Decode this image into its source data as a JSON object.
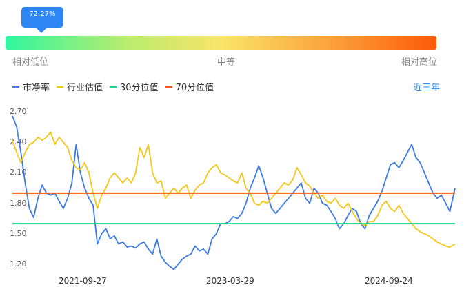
{
  "indicator": {
    "percentile_label": "72.27%",
    "percentile": 72.27,
    "low_label": "相对低位",
    "mid_label": "中等",
    "high_label": "相对高位",
    "gradient_colors": [
      "#2ff7a1",
      "#f9e56a",
      "#fc5a08"
    ]
  },
  "legend": {
    "items": [
      {
        "label": "市净率",
        "color": "#3b7be8"
      },
      {
        "label": "行业估值",
        "color": "#f5c518"
      },
      {
        "label": "30分位值",
        "color": "#19d48a"
      },
      {
        "label": "70分位值",
        "color": "#fc5a08"
      }
    ],
    "period": "近三年"
  },
  "chart_data": {
    "type": "line",
    "y_ticks": [
      "2.70",
      "2.40",
      "2.10",
      "1.80",
      "1.50",
      "1.20"
    ],
    "ylim": [
      1.2,
      2.7
    ],
    "x_ticks": [
      "2021-09-27",
      "2023-03-29",
      "2024-09-24"
    ],
    "x_range": [
      "2021-04-13",
      "2025-04-11"
    ],
    "series": [
      {
        "name": "市净率",
        "color": "#3b7be8",
        "points": [
          [
            "2021-04-13",
            2.66
          ],
          [
            "2021-04-27",
            2.55
          ],
          [
            "2021-05-11",
            2.3
          ],
          [
            "2021-05-25",
            2.0
          ],
          [
            "2021-06-08",
            1.75
          ],
          [
            "2021-06-22",
            1.66
          ],
          [
            "2021-07-06",
            1.85
          ],
          [
            "2021-07-20",
            1.98
          ],
          [
            "2021-08-03",
            1.9
          ],
          [
            "2021-08-17",
            1.88
          ],
          [
            "2021-08-31",
            1.9
          ],
          [
            "2021-09-14",
            1.82
          ],
          [
            "2021-09-28",
            1.75
          ],
          [
            "2021-10-12",
            1.85
          ],
          [
            "2021-10-26",
            2.0
          ],
          [
            "2021-11-09",
            2.38
          ],
          [
            "2021-11-23",
            2.1
          ],
          [
            "2021-12-07",
            1.95
          ],
          [
            "2021-12-21",
            1.85
          ],
          [
            "2022-01-04",
            1.78
          ],
          [
            "2022-01-18",
            1.4
          ],
          [
            "2022-02-01",
            1.5
          ],
          [
            "2022-02-15",
            1.55
          ],
          [
            "2022-03-01",
            1.45
          ],
          [
            "2022-03-15",
            1.48
          ],
          [
            "2022-03-29",
            1.4
          ],
          [
            "2022-04-12",
            1.42
          ],
          [
            "2022-04-26",
            1.37
          ],
          [
            "2022-05-10",
            1.38
          ],
          [
            "2022-05-24",
            1.36
          ],
          [
            "2022-06-07",
            1.4
          ],
          [
            "2022-06-21",
            1.42
          ],
          [
            "2022-07-05",
            1.35
          ],
          [
            "2022-07-19",
            1.3
          ],
          [
            "2022-08-02",
            1.45
          ],
          [
            "2022-08-16",
            1.28
          ],
          [
            "2022-08-30",
            1.22
          ],
          [
            "2022-09-13",
            1.18
          ],
          [
            "2022-09-27",
            1.15
          ],
          [
            "2022-10-11",
            1.2
          ],
          [
            "2022-10-25",
            1.25
          ],
          [
            "2022-11-08",
            1.28
          ],
          [
            "2022-11-22",
            1.3
          ],
          [
            "2022-12-06",
            1.38
          ],
          [
            "2022-12-20",
            1.33
          ],
          [
            "2023-01-03",
            1.35
          ],
          [
            "2023-01-17",
            1.3
          ],
          [
            "2023-01-31",
            1.45
          ],
          [
            "2023-02-14",
            1.5
          ],
          [
            "2023-02-28",
            1.6
          ],
          [
            "2023-03-14",
            1.6
          ],
          [
            "2023-03-28",
            1.62
          ],
          [
            "2023-04-11",
            1.67
          ],
          [
            "2023-04-25",
            1.65
          ],
          [
            "2023-05-09",
            1.7
          ],
          [
            "2023-05-23",
            1.8
          ],
          [
            "2023-06-06",
            1.95
          ],
          [
            "2023-06-20",
            2.05
          ],
          [
            "2023-07-04",
            2.17
          ],
          [
            "2023-07-18",
            2.05
          ],
          [
            "2023-08-01",
            1.9
          ],
          [
            "2023-08-15",
            1.75
          ],
          [
            "2023-08-29",
            1.7
          ],
          [
            "2023-09-12",
            1.75
          ],
          [
            "2023-09-26",
            1.8
          ],
          [
            "2023-10-10",
            1.85
          ],
          [
            "2023-10-24",
            1.9
          ],
          [
            "2023-11-07",
            1.95
          ],
          [
            "2023-11-21",
            2.0
          ],
          [
            "2023-12-05",
            1.85
          ],
          [
            "2023-12-19",
            1.8
          ],
          [
            "2024-01-02",
            1.95
          ],
          [
            "2024-01-16",
            1.9
          ],
          [
            "2024-01-30",
            1.8
          ],
          [
            "2024-02-13",
            1.78
          ],
          [
            "2024-02-27",
            1.72
          ],
          [
            "2024-03-12",
            1.65
          ],
          [
            "2024-03-26",
            1.55
          ],
          [
            "2024-04-09",
            1.6
          ],
          [
            "2024-04-23",
            1.68
          ],
          [
            "2024-05-07",
            1.75
          ],
          [
            "2024-05-21",
            1.72
          ],
          [
            "2024-06-04",
            1.6
          ],
          [
            "2024-06-18",
            1.55
          ],
          [
            "2024-07-02",
            1.68
          ],
          [
            "2024-07-16",
            1.75
          ],
          [
            "2024-07-30",
            1.82
          ],
          [
            "2024-08-13",
            1.92
          ],
          [
            "2024-08-27",
            2.05
          ],
          [
            "2024-09-10",
            2.18
          ],
          [
            "2024-09-24",
            2.2
          ],
          [
            "2024-10-08",
            2.15
          ],
          [
            "2024-10-22",
            2.22
          ],
          [
            "2024-11-05",
            2.3
          ],
          [
            "2024-11-19",
            2.38
          ],
          [
            "2024-12-03",
            2.25
          ],
          [
            "2024-12-17",
            2.2
          ],
          [
            "2024-12-31",
            2.1
          ],
          [
            "2025-01-14",
            2.0
          ],
          [
            "2025-01-28",
            1.9
          ],
          [
            "2025-02-11",
            1.85
          ],
          [
            "2025-02-25",
            1.88
          ],
          [
            "2025-03-11",
            1.8
          ],
          [
            "2025-03-25",
            1.72
          ],
          [
            "2025-04-11",
            1.95
          ]
        ]
      },
      {
        "name": "行业估值",
        "color": "#f5c518",
        "points": [
          [
            "2021-04-13",
            2.42
          ],
          [
            "2021-04-27",
            2.3
          ],
          [
            "2021-05-11",
            2.2
          ],
          [
            "2021-05-25",
            2.3
          ],
          [
            "2021-06-08",
            2.38
          ],
          [
            "2021-06-22",
            2.4
          ],
          [
            "2021-07-06",
            2.45
          ],
          [
            "2021-07-20",
            2.42
          ],
          [
            "2021-08-03",
            2.45
          ],
          [
            "2021-08-17",
            2.5
          ],
          [
            "2021-08-31",
            2.38
          ],
          [
            "2021-09-14",
            2.45
          ],
          [
            "2021-09-28",
            2.4
          ],
          [
            "2021-10-12",
            2.35
          ],
          [
            "2021-10-26",
            2.22
          ],
          [
            "2021-11-09",
            2.15
          ],
          [
            "2021-11-23",
            2.13
          ],
          [
            "2021-12-07",
            2.2
          ],
          [
            "2021-12-21",
            2.1
          ],
          [
            "2022-01-04",
            1.9
          ],
          [
            "2022-01-18",
            1.75
          ],
          [
            "2022-02-01",
            1.88
          ],
          [
            "2022-02-15",
            1.95
          ],
          [
            "2022-03-01",
            2.05
          ],
          [
            "2022-03-15",
            2.1
          ],
          [
            "2022-03-29",
            2.05
          ],
          [
            "2022-04-12",
            2.0
          ],
          [
            "2022-04-26",
            2.05
          ],
          [
            "2022-05-10",
            2.0
          ],
          [
            "2022-05-24",
            2.1
          ],
          [
            "2022-06-07",
            2.35
          ],
          [
            "2022-06-21",
            2.25
          ],
          [
            "2022-07-05",
            2.38
          ],
          [
            "2022-07-19",
            2.1
          ],
          [
            "2022-08-02",
            2.0
          ],
          [
            "2022-08-16",
            2.02
          ],
          [
            "2022-08-30",
            1.85
          ],
          [
            "2022-09-13",
            1.9
          ],
          [
            "2022-09-27",
            1.95
          ],
          [
            "2022-10-11",
            1.9
          ],
          [
            "2022-10-25",
            1.95
          ],
          [
            "2022-11-08",
            1.98
          ],
          [
            "2022-11-22",
            1.85
          ],
          [
            "2022-12-06",
            1.93
          ],
          [
            "2022-12-20",
            1.98
          ],
          [
            "2023-01-03",
            2.0
          ],
          [
            "2023-01-17",
            2.1
          ],
          [
            "2023-01-31",
            2.15
          ],
          [
            "2023-02-14",
            2.18
          ],
          [
            "2023-02-28",
            2.1
          ],
          [
            "2023-03-14",
            2.08
          ],
          [
            "2023-03-28",
            2.05
          ],
          [
            "2023-04-11",
            2.02
          ],
          [
            "2023-04-25",
            2.0
          ],
          [
            "2023-05-09",
            2.1
          ],
          [
            "2023-05-23",
            1.95
          ],
          [
            "2023-06-06",
            1.9
          ],
          [
            "2023-06-20",
            1.8
          ],
          [
            "2023-07-04",
            1.78
          ],
          [
            "2023-07-18",
            1.82
          ],
          [
            "2023-08-01",
            1.8
          ],
          [
            "2023-08-15",
            1.85
          ],
          [
            "2023-08-29",
            1.9
          ],
          [
            "2023-09-12",
            1.95
          ],
          [
            "2023-09-26",
            2.0
          ],
          [
            "2023-10-10",
            1.98
          ],
          [
            "2023-10-24",
            2.03
          ],
          [
            "2023-11-07",
            2.15
          ],
          [
            "2023-11-21",
            2.08
          ],
          [
            "2023-12-05",
            2.0
          ],
          [
            "2023-12-19",
            1.97
          ],
          [
            "2024-01-02",
            1.9
          ],
          [
            "2024-01-16",
            1.85
          ],
          [
            "2024-01-30",
            1.88
          ],
          [
            "2024-02-13",
            1.82
          ],
          [
            "2024-02-27",
            1.8
          ],
          [
            "2024-03-12",
            1.85
          ],
          [
            "2024-03-26",
            1.78
          ],
          [
            "2024-04-09",
            1.75
          ],
          [
            "2024-04-23",
            1.8
          ],
          [
            "2024-05-07",
            1.72
          ],
          [
            "2024-05-21",
            1.65
          ],
          [
            "2024-06-04",
            1.6
          ],
          [
            "2024-06-18",
            1.58
          ],
          [
            "2024-07-02",
            1.62
          ],
          [
            "2024-07-16",
            1.62
          ],
          [
            "2024-07-30",
            1.68
          ],
          [
            "2024-08-13",
            1.78
          ],
          [
            "2024-08-27",
            1.82
          ],
          [
            "2024-09-10",
            1.75
          ],
          [
            "2024-09-24",
            1.72
          ],
          [
            "2024-10-08",
            1.78
          ],
          [
            "2024-10-22",
            1.7
          ],
          [
            "2024-11-05",
            1.65
          ],
          [
            "2024-11-19",
            1.6
          ],
          [
            "2024-12-03",
            1.55
          ],
          [
            "2024-12-17",
            1.52
          ],
          [
            "2024-12-31",
            1.5
          ],
          [
            "2025-01-14",
            1.48
          ],
          [
            "2025-01-28",
            1.45
          ],
          [
            "2025-02-11",
            1.42
          ],
          [
            "2025-02-25",
            1.4
          ],
          [
            "2025-03-11",
            1.38
          ],
          [
            "2025-03-25",
            1.37
          ],
          [
            "2025-04-11",
            1.4
          ]
        ]
      },
      {
        "name": "30分位值",
        "color": "#19d48a",
        "value": 1.6
      },
      {
        "name": "70分位值",
        "color": "#fc5a08",
        "value": 1.9
      }
    ]
  }
}
